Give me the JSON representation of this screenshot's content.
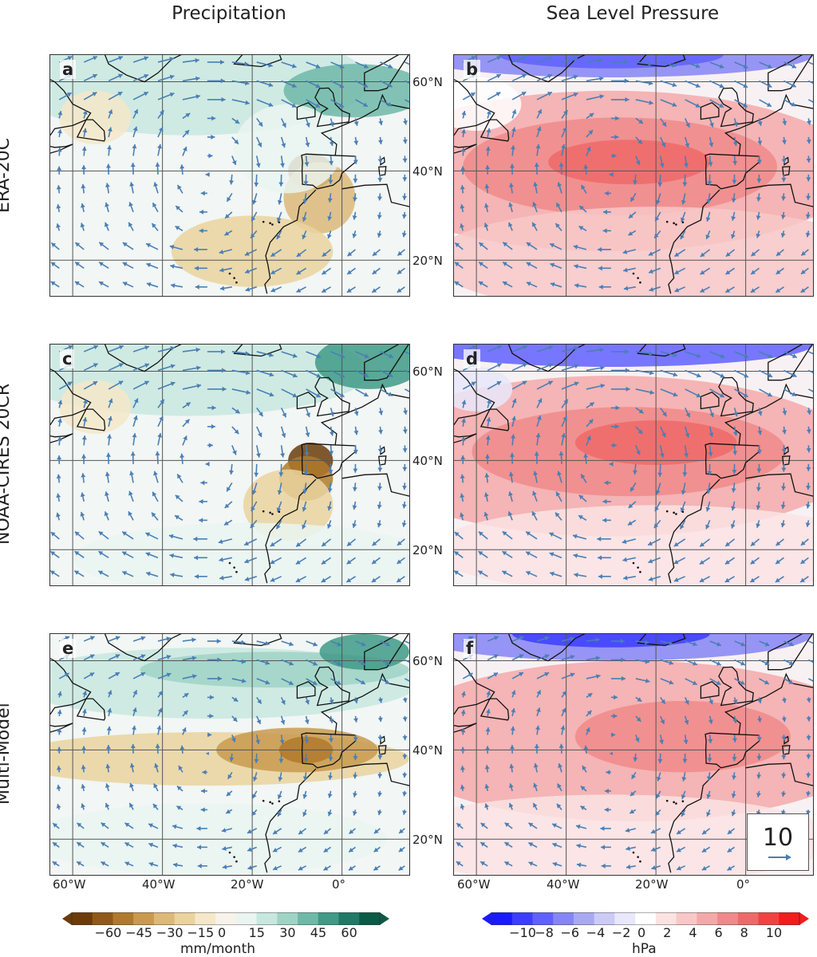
{
  "column_titles": [
    "Precipitation",
    "Sea Level Pressure"
  ],
  "row_labels": [
    "ERA-20C",
    "NOAA-CIRES 20CR",
    "Multi-Model"
  ],
  "panels": [
    {
      "letter": "a",
      "field": "precip",
      "dataset": "ERA-20C"
    },
    {
      "letter": "b",
      "field": "slp",
      "dataset": "ERA-20C"
    },
    {
      "letter": "c",
      "field": "precip",
      "dataset": "NOAA-CIRES 20CR"
    },
    {
      "letter": "d",
      "field": "slp",
      "dataset": "NOAA-CIRES 20CR"
    },
    {
      "letter": "e",
      "field": "precip",
      "dataset": "Multi-Model"
    },
    {
      "letter": "f",
      "field": "slp",
      "dataset": "Multi-Model"
    }
  ],
  "latitude_labels": [
    "60°N",
    "40°N",
    "20°N"
  ],
  "longitude_labels": [
    "60°W",
    "40°W",
    "20°W",
    "0°"
  ],
  "vector_scale": {
    "value": "10"
  },
  "colorbars": {
    "precip": {
      "ticks": [
        "−60",
        "−45",
        "−30",
        "−15",
        "0",
        "15",
        "30",
        "45",
        "60"
      ],
      "units": "mm/month",
      "colors": [
        "#6b3c0a",
        "#8f5a17",
        "#b07a2c",
        "#c99a4e",
        "#dcb978",
        "#ead39f",
        "#f4e8c9",
        "#f7f3ea",
        "#eaf4f1",
        "#c8e7df",
        "#9fd3c5",
        "#6fb9a8",
        "#3f9a86",
        "#1e7a66",
        "#0b5a47"
      ]
    },
    "slp": {
      "ticks": [
        "−10",
        "−8",
        "−6",
        "−4",
        "−2",
        "0",
        "2",
        "4",
        "6",
        "8",
        "10"
      ],
      "units": "hPa",
      "colors": [
        "#1a1aff",
        "#3d3dff",
        "#6060ff",
        "#8585f5",
        "#a9a9f2",
        "#cbcbf5",
        "#e8e8fa",
        "#ffffff",
        "#fbe3e3",
        "#f8c8c8",
        "#f4a9a9",
        "#f08a8a",
        "#ee6a6a",
        "#ef4343",
        "#f21c1c"
      ]
    }
  }
}
